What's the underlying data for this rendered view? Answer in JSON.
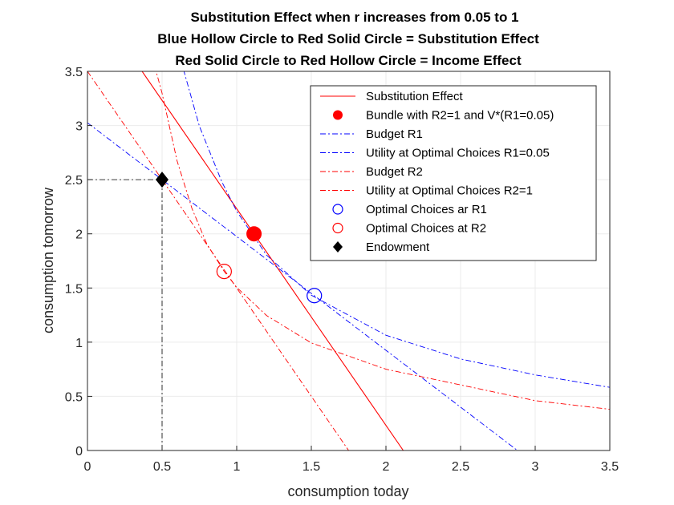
{
  "chart_data": {
    "type": "line",
    "title_lines": [
      "Substitution Effect when r increases from 0.05 to 1",
      "Blue Hollow Circle to Red Solid Circle = Substitution Effect",
      "Red Solid Circle to Red Hollow Circle = Income Effect"
    ],
    "xlabel": "consumption today",
    "ylabel": "consumption tomorrow",
    "xlim": [
      0,
      3.5
    ],
    "ylim": [
      0,
      3.5
    ],
    "xticks": [
      0,
      0.5,
      1,
      1.5,
      2,
      2.5,
      3,
      3.5
    ],
    "xtick_labels": [
      "0",
      "0.5",
      "1",
      "1.5",
      "2",
      "2.5",
      "3",
      "3.5"
    ],
    "yticks": [
      0,
      0.5,
      1,
      1.5,
      2,
      2.5,
      3,
      3.5
    ],
    "ytick_labels": [
      "0",
      "0.5",
      "1",
      "1.5",
      "2",
      "2.5",
      "3",
      "3.5"
    ],
    "grid": true,
    "legend_position": "top-right",
    "series": [
      {
        "name": "Substitution Effect",
        "kind": "line",
        "color": "#ff0000",
        "dash": "solid",
        "x": [
          0,
          2.116
        ],
        "y": [
          4.232,
          0
        ]
      },
      {
        "name": "Bundle with R2=1 and V*(R1=0.05)",
        "kind": "marker",
        "marker": "filled-circle",
        "color": "#ff0000",
        "x": [
          1.116
        ],
        "y": [
          2.0
        ]
      },
      {
        "name": "Budget R1",
        "kind": "line",
        "color": "#0000ff",
        "dash": "dashdot",
        "x": [
          0,
          2.881
        ],
        "y": [
          3.025,
          0
        ]
      },
      {
        "name": "Utility at Optimal Choices R1=0.05",
        "kind": "line",
        "color": "#0000ff",
        "dash": "dashdot",
        "x": [
          0.6,
          0.75,
          0.9,
          1.0,
          1.2,
          1.5,
          2.0,
          2.5,
          3.0,
          3.5
        ],
        "y": [
          3.73,
          2.994,
          2.481,
          2.209,
          1.804,
          1.433,
          1.064,
          0.845,
          0.698,
          0.583
        ]
      },
      {
        "name": "Budget R2",
        "kind": "line",
        "color": "#ff0000",
        "dash": "dashdot",
        "x": [
          0,
          1.75
        ],
        "y": [
          3.5,
          0
        ]
      },
      {
        "name": "Utility at Optimal Choices R2=1",
        "kind": "line",
        "color": "#ff0000",
        "dash": "dashdot",
        "x": [
          0.45,
          0.5,
          0.6,
          0.7,
          0.8,
          0.916,
          1.0,
          1.2,
          1.5,
          2.0,
          2.5,
          3.0,
          3.5
        ],
        "y": [
          3.55,
          3.298,
          2.676,
          2.235,
          1.906,
          1.653,
          1.506,
          1.246,
          0.993,
          0.75,
          0.605,
          0.46,
          0.38
        ]
      },
      {
        "name": "Optimal Choices ar R1",
        "kind": "marker",
        "marker": "hollow-circle",
        "color": "#0000ff",
        "x": [
          1.52
        ],
        "y": [
          1.43
        ]
      },
      {
        "name": "Optimal Choices at R2",
        "kind": "marker",
        "marker": "hollow-circle",
        "color": "#ff0000",
        "x": [
          0.916
        ],
        "y": [
          1.653
        ]
      },
      {
        "name": "Endowment",
        "kind": "marker",
        "marker": "diamond",
        "color": "#000000",
        "x": [
          0.5
        ],
        "y": [
          2.5
        ]
      }
    ],
    "guides": [
      {
        "x": [
          0,
          0.5
        ],
        "y": [
          2.5,
          2.5
        ],
        "color": "#000000",
        "dash": "dashdot"
      },
      {
        "x": [
          0.5,
          0.5
        ],
        "y": [
          0,
          2.5
        ],
        "color": "#000000",
        "dash": "dashdot"
      }
    ]
  }
}
